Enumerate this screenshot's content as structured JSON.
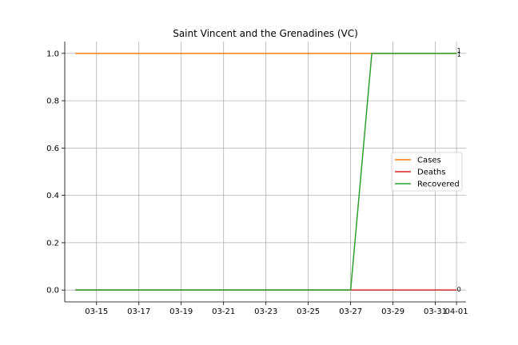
{
  "chart_data": {
    "type": "line",
    "title": "Saint Vincent and the Grenadines (VC)",
    "xlabel": "",
    "ylabel": "",
    "x": [
      "2020-03-14",
      "2020-03-15",
      "2020-03-16",
      "2020-03-17",
      "2020-03-18",
      "2020-03-19",
      "2020-03-20",
      "2020-03-21",
      "2020-03-22",
      "2020-03-23",
      "2020-03-24",
      "2020-03-25",
      "2020-03-26",
      "2020-03-27",
      "2020-03-28",
      "2020-03-29",
      "2020-03-30",
      "2020-03-31",
      "2020-04-01"
    ],
    "x_ticks": [
      "03-15",
      "03-17",
      "03-19",
      "03-21",
      "03-23",
      "03-25",
      "03-27",
      "03-29",
      "03-31",
      "04-01"
    ],
    "ylim": [
      0,
      1.05
    ],
    "y_ticks": [
      "0.0",
      "0.2",
      "0.4",
      "0.6",
      "0.8",
      "1.0"
    ],
    "grid": true,
    "legend_position": "right",
    "series": [
      {
        "name": "Cases",
        "color": "#ff7f0e",
        "values": [
          1,
          1,
          1,
          1,
          1,
          1,
          1,
          1,
          1,
          1,
          1,
          1,
          1,
          1,
          1,
          1,
          1,
          1,
          1
        ],
        "end_label": "1"
      },
      {
        "name": "Deaths",
        "color": "#d62728",
        "values": [
          0,
          0,
          0,
          0,
          0,
          0,
          0,
          0,
          0,
          0,
          0,
          0,
          0,
          0,
          0,
          0,
          0,
          0,
          0
        ],
        "end_label": "0"
      },
      {
        "name": "Recovered",
        "color": "#2ca02c",
        "values": [
          0,
          0,
          0,
          0,
          0,
          0,
          0,
          0,
          0,
          0,
          0,
          0,
          0,
          0,
          1,
          1,
          1,
          1,
          1
        ],
        "end_label": "1"
      }
    ]
  }
}
